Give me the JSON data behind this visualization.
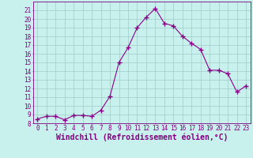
{
  "x": [
    0,
    1,
    2,
    3,
    4,
    5,
    6,
    7,
    8,
    9,
    10,
    11,
    12,
    13,
    14,
    15,
    16,
    17,
    18,
    19,
    20,
    21,
    22,
    23
  ],
  "y": [
    8.5,
    8.8,
    8.8,
    8.4,
    8.9,
    8.9,
    8.8,
    9.5,
    11.1,
    15.0,
    16.7,
    19.0,
    20.2,
    21.2,
    19.5,
    19.2,
    18.0,
    17.2,
    16.5,
    14.1,
    14.1,
    13.7,
    11.6,
    12.3
  ],
  "line_color": "#8b008b",
  "marker": "+",
  "marker_size": 4,
  "bg_color": "#c8f0ec",
  "grid_color": "#a0ccc8",
  "xlabel": "Windchill (Refroidissement éolien,°C)",
  "xlabel_color": "#800080",
  "ylim": [
    8,
    22
  ],
  "xlim": [
    -0.5,
    23.5
  ],
  "yticks": [
    8,
    9,
    10,
    11,
    12,
    13,
    14,
    15,
    16,
    17,
    18,
    19,
    20,
    21
  ],
  "xticks": [
    0,
    1,
    2,
    3,
    4,
    5,
    6,
    7,
    8,
    9,
    10,
    11,
    12,
    13,
    14,
    15,
    16,
    17,
    18,
    19,
    20,
    21,
    22,
    23
  ],
  "tick_color": "#800080",
  "tick_fontsize": 5.5,
  "xlabel_fontsize": 7.0,
  "linewidth": 0.8,
  "marker_linewidth": 1.0
}
